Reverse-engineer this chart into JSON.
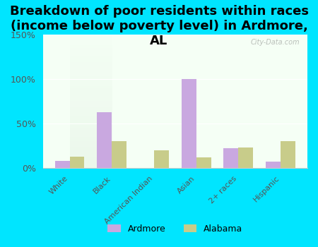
{
  "title": "Breakdown of poor residents within races\n(income below poverty level) in Ardmore,\nAL",
  "categories": [
    "White",
    "Black",
    "American Indian",
    "Asian",
    "2+ races",
    "Hispanic"
  ],
  "ardmore_values": [
    8,
    63,
    0,
    100,
    22,
    7
  ],
  "alabama_values": [
    13,
    30,
    20,
    12,
    23,
    30
  ],
  "ardmore_color": "#c9a8e0",
  "alabama_color": "#c8cc8a",
  "background_color": "#00e5ff",
  "plot_bg_top": "#f5fff5",
  "plot_bg_bottom": "#e8f5e8",
  "ylim": [
    0,
    150
  ],
  "yticks": [
    0,
    50,
    100,
    150
  ],
  "ytick_labels": [
    "0%",
    "50%",
    "100%",
    "150%"
  ],
  "watermark": "City-Data.com",
  "bar_width": 0.35,
  "title_fontsize": 13,
  "legend_labels": [
    "Ardmore",
    "Alabama"
  ]
}
